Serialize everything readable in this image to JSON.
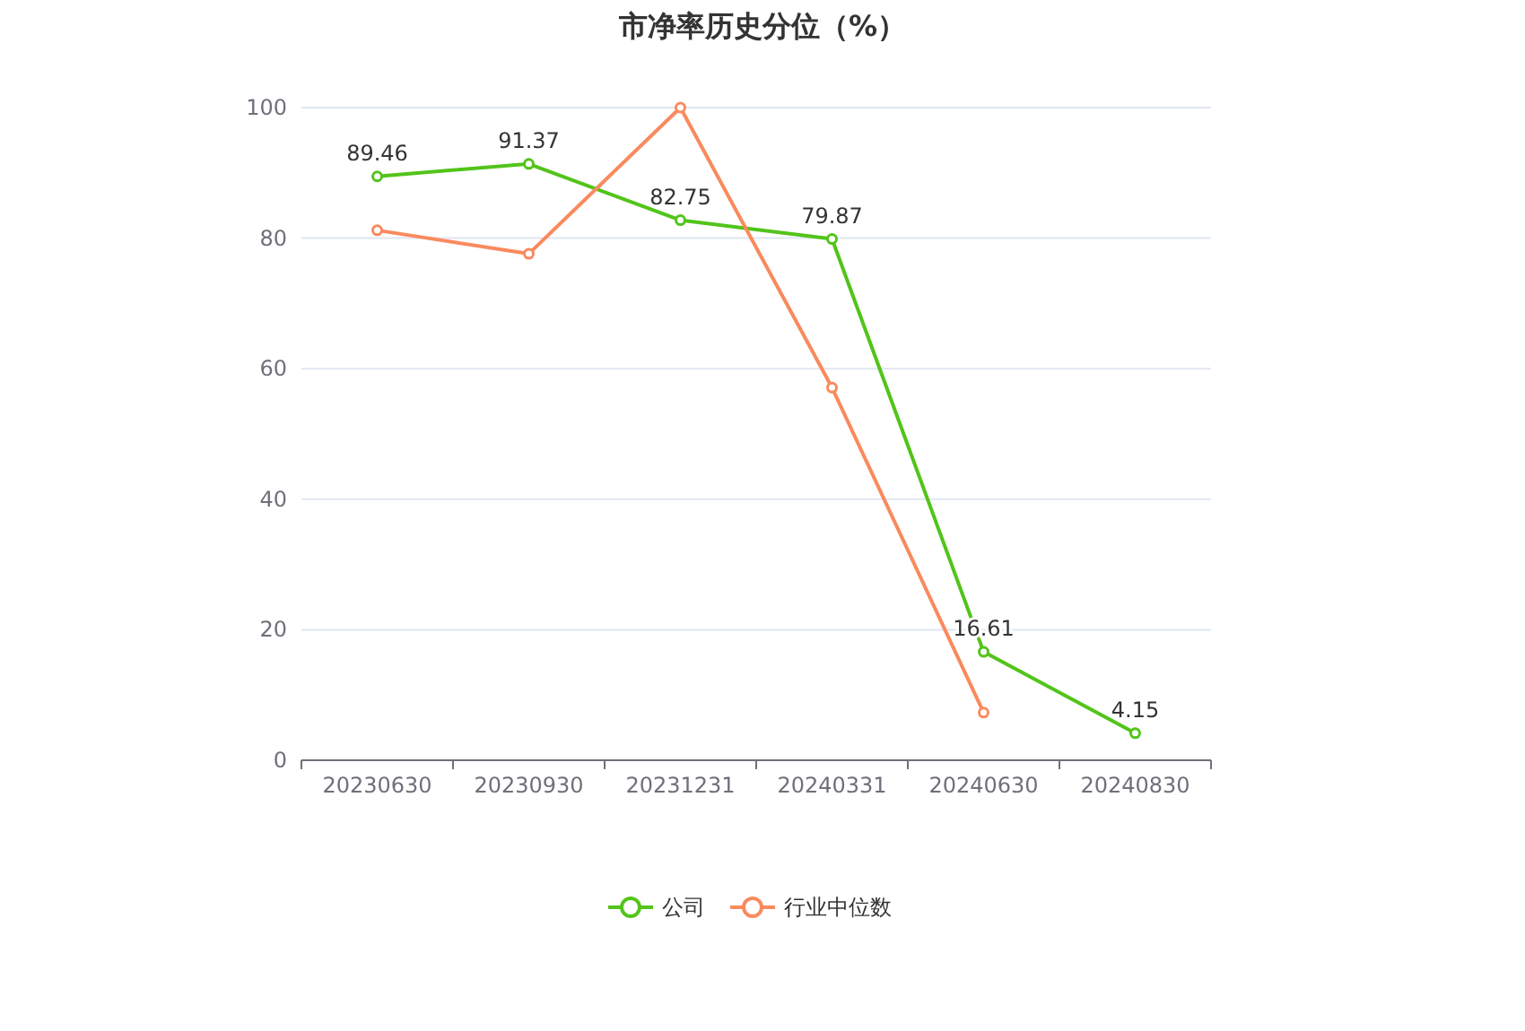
{
  "chart_data": {
    "type": "line",
    "title": "市净率历史分位（%）",
    "categories": [
      "20230630",
      "20230930",
      "20231231",
      "20240331",
      "20240630",
      "20240830"
    ],
    "series": [
      {
        "name": "公司",
        "color": "#52c41a",
        "values": [
          89.46,
          91.37,
          82.75,
          79.87,
          16.61,
          4.15
        ],
        "value_labels": [
          "89.46",
          "91.37",
          "82.75",
          "79.87",
          "16.61",
          "4.15"
        ]
      },
      {
        "name": "行业中位数",
        "color": "#f98a5d",
        "values": [
          81.2,
          77.6,
          100,
          57.1,
          7.3,
          null
        ]
      }
    ],
    "ylim": [
      0,
      100
    ],
    "yticks": [
      0,
      20,
      40,
      60,
      80,
      100
    ],
    "grid": "y",
    "legend": "bottom",
    "marker": "circle",
    "line_style": "solid"
  }
}
